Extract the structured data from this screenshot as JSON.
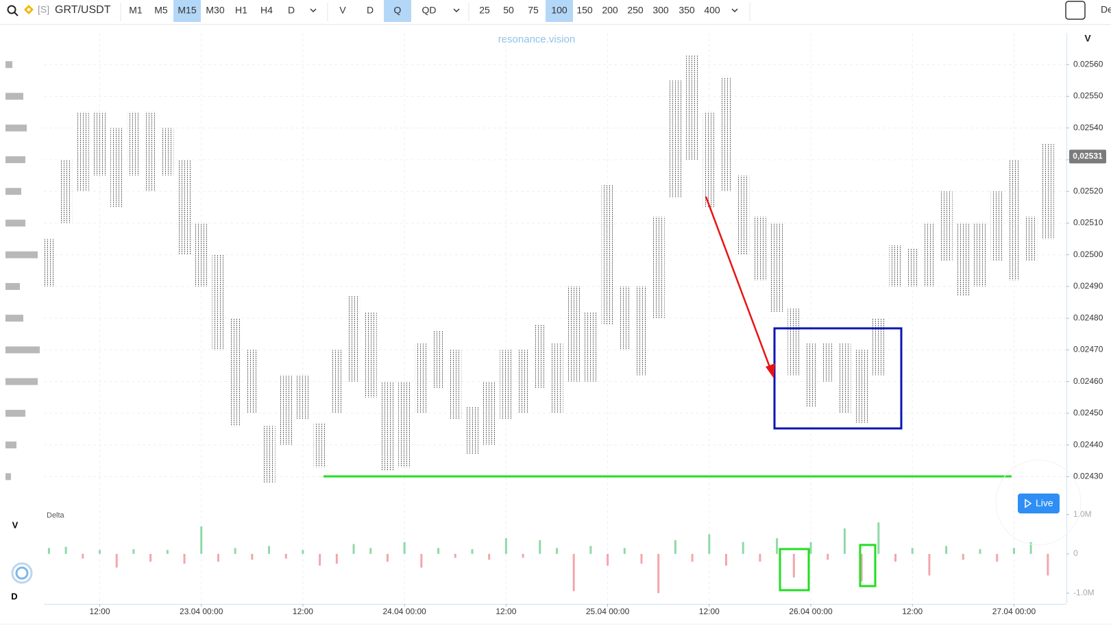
{
  "toolbar": {
    "prefix": "[S]",
    "symbol": "GRT/USDT",
    "timeframes": [
      {
        "label": "M1"
      },
      {
        "label": "M5"
      },
      {
        "label": "M15",
        "active": true
      },
      {
        "label": "M30"
      },
      {
        "label": "H1"
      },
      {
        "label": "H4"
      },
      {
        "label": "D"
      }
    ],
    "views": [
      {
        "label": "V"
      },
      {
        "label": "D"
      },
      {
        "label": "Q",
        "active": true
      },
      {
        "label": "QD"
      }
    ],
    "scales": [
      {
        "label": "25"
      },
      {
        "label": "50"
      },
      {
        "label": "75"
      },
      {
        "label": "100",
        "active": true
      },
      {
        "label": "150"
      },
      {
        "label": "200"
      },
      {
        "label": "250"
      },
      {
        "label": "300"
      },
      {
        "label": "350"
      },
      {
        "label": "400"
      }
    ],
    "right_label": "De"
  },
  "live_button": "Live",
  "pane_labels": {
    "volume": "V",
    "delta": "D"
  },
  "chart_data": {
    "type": "cluster",
    "watermark": "resonance.vision",
    "axis_label": "V",
    "grid": true,
    "color": "#7a7a7a",
    "x": [
      6,
      8,
      10,
      12,
      14,
      16,
      18,
      20,
      22,
      24,
      26,
      28,
      30,
      32,
      34,
      36,
      38,
      40,
      42,
      44,
      46,
      48,
      50,
      52,
      54,
      56,
      58,
      60,
      62,
      64,
      66,
      68,
      70,
      72,
      74,
      76,
      78,
      80,
      82,
      84,
      86,
      88,
      90,
      92,
      94,
      96,
      98,
      100,
      102,
      104,
      106,
      108,
      110,
      112,
      114,
      116,
      118,
      120,
      122,
      124
    ],
    "high": [
      0.02505,
      0.0253,
      0.02545,
      0.02545,
      0.0254,
      0.02545,
      0.02545,
      0.0254,
      0.0253,
      0.0251,
      0.025,
      0.0248,
      0.0247,
      0.02446,
      0.02462,
      0.02462,
      0.02447,
      0.0247,
      0.02487,
      0.02482,
      0.0246,
      0.0246,
      0.02472,
      0.02476,
      0.0247,
      0.02452,
      0.0246,
      0.0247,
      0.0247,
      0.02478,
      0.02472,
      0.0249,
      0.02482,
      0.02522,
      0.0249,
      0.0249,
      0.02512,
      0.02555,
      0.02563,
      0.02545,
      0.02556,
      0.02525,
      0.02512,
      0.0251,
      0.02483,
      0.02472,
      0.02472,
      0.02472,
      0.0247,
      0.0248,
      0.02503,
      0.02502,
      0.0251,
      0.0252,
      0.0251,
      0.0251,
      0.0252,
      0.0253,
      0.02512,
      0.02535
    ],
    "low": [
      0.0249,
      0.0251,
      0.0252,
      0.02525,
      0.02515,
      0.02525,
      0.0252,
      0.02525,
      0.025,
      0.0249,
      0.0247,
      0.02446,
      0.0245,
      0.02428,
      0.0244,
      0.02448,
      0.02433,
      0.0245,
      0.0246,
      0.02455,
      0.02432,
      0.02433,
      0.0245,
      0.02458,
      0.02448,
      0.02437,
      0.0244,
      0.02448,
      0.0245,
      0.02458,
      0.0245,
      0.0246,
      0.0246,
      0.02478,
      0.0247,
      0.02462,
      0.0248,
      0.02518,
      0.0253,
      0.02515,
      0.0252,
      0.025,
      0.02492,
      0.02482,
      0.02462,
      0.02452,
      0.0246,
      0.0245,
      0.02447,
      0.02462,
      0.0249,
      0.0249,
      0.0249,
      0.02498,
      0.02487,
      0.0249,
      0.02498,
      0.02492,
      0.02498,
      0.02505
    ],
    "xlim": [
      5.4,
      126.2
    ],
    "xticks": [
      {
        "value": 12,
        "label": "12:00"
      },
      {
        "value": 24,
        "label": "23.04 00:00"
      },
      {
        "value": 36,
        "label": "12:00"
      },
      {
        "value": 48,
        "label": "24.04 00:00"
      },
      {
        "value": 60,
        "label": "12:00"
      },
      {
        "value": 72,
        "label": "25.04 00:00"
      },
      {
        "value": 84,
        "label": "12:00"
      },
      {
        "value": 96,
        "label": "26.04 00:00"
      },
      {
        "value": 108,
        "label": "12:00"
      },
      {
        "value": 120,
        "label": "27.04 00:00"
      }
    ],
    "ylim": [
      0.02421,
      0.0257
    ],
    "yticks": [
      {
        "value": 0.0256,
        "label": "0.02560"
      },
      {
        "value": 0.0255,
        "label": "0.02550"
      },
      {
        "value": 0.0254,
        "label": "0.02540"
      },
      {
        "value": 0.0253,
        "label": "0.02530"
      },
      {
        "value": 0.0252,
        "label": "0.02520"
      },
      {
        "value": 0.0251,
        "label": "0.02510"
      },
      {
        "value": 0.025,
        "label": "0.02500"
      },
      {
        "value": 0.0249,
        "label": "0.02490"
      },
      {
        "value": 0.0248,
        "label": "0.02480"
      },
      {
        "value": 0.0247,
        "label": "0.02470"
      },
      {
        "value": 0.0246,
        "label": "0.02460"
      },
      {
        "value": 0.0245,
        "label": "0.02450"
      },
      {
        "value": 0.0244,
        "label": "0.02440"
      },
      {
        "value": 0.0243,
        "label": "0.02430"
      }
    ],
    "last_price": {
      "value": 0.02531,
      "label": "0,02531"
    },
    "delta": {
      "label": "Delta",
      "up_color": "#8fd9a8",
      "down_color": "#f3a5ad",
      "values": [
        150000,
        180000,
        -120000,
        100000,
        -350000,
        120000,
        -200000,
        100000,
        -250000,
        700000,
        -200000,
        150000,
        -150000,
        200000,
        -120000,
        100000,
        -300000,
        -250000,
        250000,
        150000,
        -200000,
        300000,
        -350000,
        150000,
        -100000,
        120000,
        -150000,
        400000,
        -100000,
        350000,
        150000,
        -950000,
        200000,
        -300000,
        150000,
        -250000,
        -1000000,
        350000,
        -200000,
        500000,
        -300000,
        300000,
        -200000,
        400000,
        -600000,
        300000,
        -150000,
        650000,
        -700000,
        800000,
        -200000,
        150000,
        -550000,
        200000,
        -150000,
        120000,
        -200000,
        150000,
        300000,
        -550000
      ],
      "ylim": [
        -1100000,
        1100000
      ],
      "yticks": [
        {
          "value": 1000000,
          "label": "1.0M"
        },
        0,
        {
          "value": -1000000,
          "label": "-1.0M"
        }
      ]
    },
    "volume_profile": {
      "color": "#b8b8b8",
      "prices": [
        0.0256,
        0.0255,
        0.0254,
        0.0253,
        0.0252,
        0.0251,
        0.025,
        0.0249,
        0.0248,
        0.0247,
        0.0246,
        0.0245,
        0.0244,
        0.0243
      ],
      "values": [
        10,
        26,
        31,
        29,
        23,
        29,
        47,
        21,
        26,
        50,
        47,
        29,
        16,
        8
      ]
    }
  }
}
